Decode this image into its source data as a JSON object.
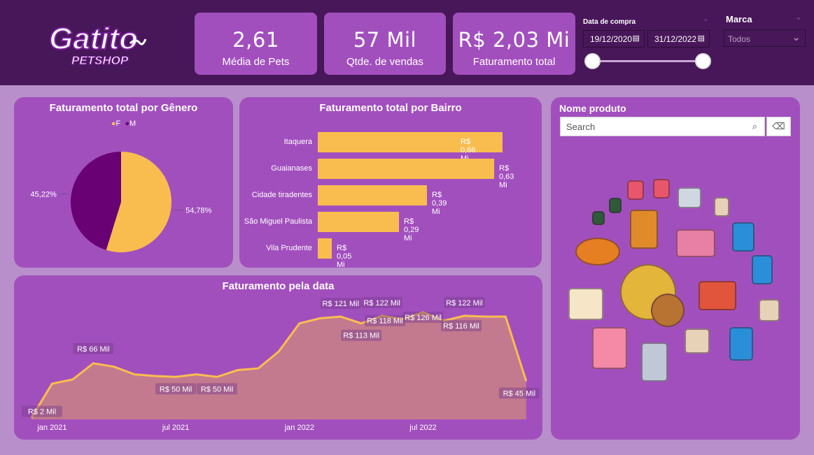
{
  "logo": {
    "text_main": "Gatito",
    "text_sub": "PETSHOP"
  },
  "kpis": [
    {
      "value": "2,61",
      "label": "Média de Pets"
    },
    {
      "value": "57 Mil",
      "label": "Qtde. de vendas"
    },
    {
      "value": "R$ 2,03 Mi",
      "label": "Faturamento total"
    }
  ],
  "date_filter": {
    "label": "Data de compra",
    "start": "19/12/2020",
    "end": "31/12/2022",
    "slider_range": [
      0,
      1
    ]
  },
  "brand_filter": {
    "label": "Marca",
    "selected": "Todos"
  },
  "colors": {
    "header": "#481759",
    "panel": "#a24fbe",
    "accent": "#f9bd4f",
    "male": "#690073"
  },
  "chart_data": [
    {
      "type": "pie",
      "title": "Faturamento total por Gênero",
      "legend": [
        "F",
        "M"
      ],
      "legend_position": "top-center",
      "slices": [
        {
          "name": "F",
          "value": 54.78,
          "label": "54,78%",
          "color": "#f9bd4f"
        },
        {
          "name": "M",
          "value": 45.22,
          "label": "45,22%",
          "color": "#690073"
        }
      ]
    },
    {
      "type": "bar",
      "title": "Faturamento total por Bairro",
      "orientation": "horizontal",
      "categories": [
        "Itaquera",
        "Guaianases",
        "Cidade tiradentes",
        "São Miguel Paulista",
        "Vila Prudente"
      ],
      "values": [
        0.66,
        0.63,
        0.39,
        0.29,
        0.05
      ],
      "labels": [
        "R$ 0,66 Mi",
        "R$ 0,63 Mi",
        "R$ 0,39 Mi",
        "R$ 0,29 Mi",
        "R$ 0,05 Mi"
      ]
    },
    {
      "type": "area",
      "title": "Faturamento pela data",
      "ylabel": "R$ Mil",
      "x": [
        "dez 2020",
        "jan 2021",
        "fev 2021",
        "mar 2021",
        "abr 2021",
        "mai 2021",
        "jun 2021",
        "jul 2021",
        "ago 2021",
        "set 2021",
        "out 2021",
        "nov 2021",
        "dez 2021",
        "jan 2022",
        "fev 2022",
        "mar 2022",
        "abr 2022",
        "mai 2022",
        "jun 2022",
        "jul 2022",
        "ago 2022",
        "set 2022",
        "out 2022",
        "nov 2022",
        "dez 2022"
      ],
      "values": [
        2,
        42,
        47,
        66,
        62,
        53,
        51,
        50,
        53,
        50,
        58,
        60,
        80,
        113,
        119,
        121,
        113,
        122,
        118,
        126,
        116,
        122,
        121,
        121,
        45
      ],
      "point_labels": {
        "0": "R$ 2 Mil",
        "3": "R$ 66 Mil",
        "7": "R$ 50 Mil",
        "9": "R$ 50 Mil",
        "15": "R$ 121 Mil",
        "16": "R$ 113 Mil",
        "17": "R$ 122 Mil",
        "18": "R$ 118 Mil",
        "19": "R$ 126 Mil",
        "20": "R$ 116 Mil",
        "21": "R$ 122 Mil",
        "24": "R$ 45 Mil"
      },
      "xticks": [
        {
          "index": 1,
          "label": "jan 2021"
        },
        {
          "index": 7,
          "label": "jul 2021"
        },
        {
          "index": 13,
          "label": "jan 2022"
        },
        {
          "index": 19,
          "label": "jul 2022"
        }
      ],
      "ylim": [
        0,
        130
      ]
    }
  ],
  "products": {
    "title": "Nome produto",
    "search_placeholder": "Search",
    "items": [
      "roupa-pet",
      "roupa-pet",
      "rato-brinquedo",
      "racao-gato",
      "comedouro",
      "comedouro",
      "cachorro-brinquedo",
      "coleira",
      "coleira-rosa",
      "racao-cachorro",
      "osso",
      "bola-espinhos",
      "bola-marrom",
      "coleira-osso",
      "racao-gato",
      "petisco",
      "lata-racao",
      "racao-gato",
      "racao-cachorro",
      "racao-gato"
    ]
  }
}
